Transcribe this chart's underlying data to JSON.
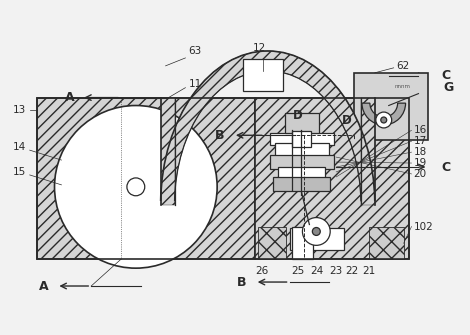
{
  "bg_color": "#f2f2f2",
  "line_color": "#2a2a2a",
  "hatch_fc": "#d8d8d8",
  "white": "#ffffff",
  "figsize": [
    4.7,
    3.35
  ],
  "dpi": 100,
  "labels": {
    "A_top": "A",
    "A_bot": "A",
    "B_mid": "B",
    "B_bot": "B",
    "C_top": "C",
    "C_mid": "C",
    "G": "G",
    "D_left": "D",
    "D_right": "D",
    "n11": "11",
    "n12": "12",
    "n13": "13",
    "n14": "14",
    "n15": "15",
    "n16": "16",
    "n17": "17",
    "n18": "18",
    "n19": "19",
    "n20": "20",
    "n21": "21",
    "n22": "22",
    "n23": "23",
    "n24": "24",
    "n25": "25",
    "n26": "26",
    "n62": "62",
    "n63": "63",
    "n102": "102"
  }
}
